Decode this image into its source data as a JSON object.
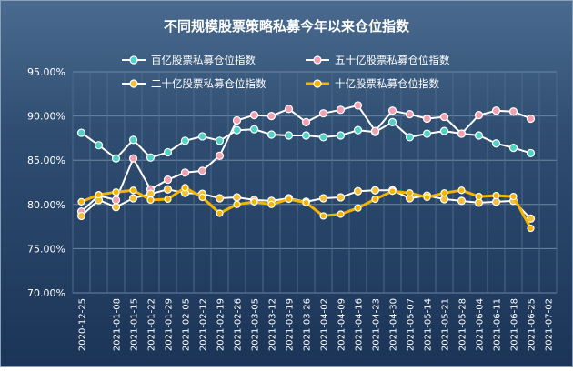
{
  "chart_data": {
    "type": "line",
    "title": "不同规模股票策略私募今年以来仓位指数",
    "xlabel": "",
    "ylabel": "",
    "ylim": [
      70,
      95
    ],
    "yticks": [
      "70.00%",
      "75.00%",
      "80.00%",
      "85.00%",
      "90.00%",
      "95.00%"
    ],
    "grid": true,
    "legend_position": "top",
    "categories": [
      "2020-12-25",
      "2021-01-01",
      "2021-01-08",
      "2021-01-15",
      "2021-01-22",
      "2021-01-29",
      "2021-02-05",
      "2021-02-12",
      "2021-02-19",
      "2021-02-26",
      "2021-03-05",
      "2021-03-12",
      "2021-03-19",
      "2021-03-26",
      "2021-04-02",
      "2021-04-09",
      "2021-04-16",
      "2021-04-23",
      "2021-04-30",
      "2021-05-07",
      "2021-05-14",
      "2021-05-21",
      "2021-05-28",
      "2021-06-04",
      "2021-06-11",
      "2021-06-18",
      "2021-06-25",
      "2021-07-02"
    ],
    "x_tick_labels": [
      "2020-12-25",
      "2021-01-08",
      "2021-01-15",
      "2021-01-22",
      "2021-01-29",
      "2021-02-05",
      "2021-02-12",
      "2021-02-19",
      "2021-02-26",
      "2021-03-05",
      "2021-03-12",
      "2021-03-19",
      "2021-03-26",
      "2021-04-02",
      "2021-04-09",
      "2021-04-16",
      "2021-04-23",
      "2021-04-30",
      "2021-05-07",
      "2021-05-14",
      "2021-05-21",
      "2021-05-28",
      "2021-06-04",
      "2021-06-11",
      "2021-06-18",
      "2021-06-25",
      "2021-07-02"
    ],
    "series": [
      {
        "name": "百亿股票私募仓位指数",
        "color": "#4fd1c5",
        "values": [
          88.1,
          86.7,
          85.2,
          87.3,
          85.3,
          85.9,
          87.2,
          87.7,
          87.2,
          88.4,
          88.5,
          87.9,
          87.8,
          87.8,
          87.6,
          87.8,
          88.4,
          88.2,
          89.3,
          87.6,
          88.0,
          88.3,
          88.0,
          87.8,
          86.9,
          86.4,
          85.8,
          null
        ]
      },
      {
        "name": "五十亿股票私募仓位指数",
        "color": "#f29fb0",
        "values": [
          79.2,
          81.0,
          80.5,
          85.2,
          81.7,
          82.8,
          83.6,
          83.8,
          85.5,
          89.5,
          90.1,
          90.0,
          90.8,
          89.3,
          90.3,
          90.7,
          91.2,
          88.3,
          90.6,
          90.2,
          89.7,
          89.9,
          88.0,
          90.1,
          90.6,
          90.5,
          89.7,
          null
        ]
      },
      {
        "name": "二十亿股票私募仓位指数",
        "color": "#f2c037",
        "values": [
          78.7,
          80.5,
          79.7,
          80.7,
          81.2,
          81.7,
          81.3,
          81.2,
          80.7,
          80.8,
          80.5,
          80.4,
          80.7,
          80.3,
          80.7,
          80.8,
          81.5,
          81.6,
          81.6,
          80.7,
          81.0,
          80.6,
          80.4,
          80.2,
          80.3,
          80.4,
          78.4,
          null
        ]
      },
      {
        "name": "十亿股票私募仓位指数",
        "color": "#f5b400",
        "values": [
          80.3,
          81.1,
          81.4,
          81.6,
          80.5,
          80.6,
          81.9,
          80.8,
          79.0,
          80.0,
          80.3,
          80.0,
          80.6,
          80.2,
          78.7,
          78.9,
          79.6,
          80.6,
          81.5,
          81.3,
          80.8,
          81.3,
          81.6,
          80.9,
          81.0,
          80.9,
          77.3,
          null
        ]
      }
    ]
  }
}
